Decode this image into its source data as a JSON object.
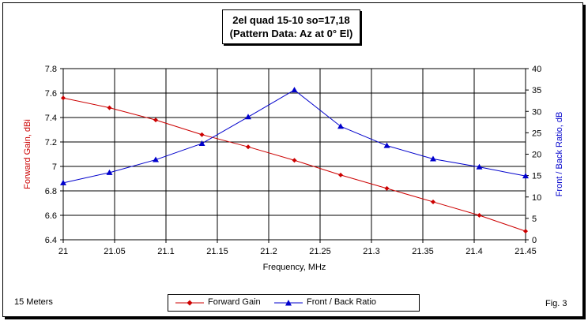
{
  "figure": {
    "title_line1": "2el quad 15-10 so=17,18",
    "title_line2": "(Pattern Data: Az at 0° El)",
    "bottom_left_note": "15 Meters",
    "bottom_right_note": "Fig. 3"
  },
  "chart_data": {
    "type": "line",
    "xlabel": "Frequency, MHz",
    "ylabel": "Forward Gain,  dBi",
    "y2label": "Front / Back Ratio,  dB",
    "xlim": [
      21,
      21.45
    ],
    "ylim": [
      6.4,
      7.8
    ],
    "y2lim": [
      0,
      40
    ],
    "x_ticks": [
      "21",
      "21.05",
      "21.1",
      "21.15",
      "21.2",
      "21.25",
      "21.3",
      "21.35",
      "21.4",
      "21.45"
    ],
    "y_ticks": [
      "6.4",
      "6.6",
      "6.8",
      "7",
      "7.2",
      "7.4",
      "7.6",
      "7.8"
    ],
    "y2_ticks": [
      "0",
      "5",
      "10",
      "15",
      "20",
      "25",
      "30",
      "35",
      "40"
    ],
    "grid": true,
    "legend_position": "bottom-center",
    "x": [
      21.0,
      21.045,
      21.09,
      21.135,
      21.18,
      21.225,
      21.27,
      21.315,
      21.36,
      21.405,
      21.45
    ],
    "series": [
      {
        "name": "Forward Gain",
        "axis": "left",
        "color": "#cc0000",
        "marker": "diamond",
        "values": [
          7.56,
          7.48,
          7.38,
          7.26,
          7.16,
          7.05,
          6.93,
          6.82,
          6.71,
          6.6,
          6.47
        ]
      },
      {
        "name": "Front / Back Ratio",
        "axis": "right",
        "color": "#0000cc",
        "marker": "triangle",
        "values": [
          13.3,
          15.7,
          18.7,
          22.5,
          28.7,
          35.0,
          26.5,
          22.0,
          18.9,
          17.0,
          14.9
        ]
      }
    ]
  }
}
